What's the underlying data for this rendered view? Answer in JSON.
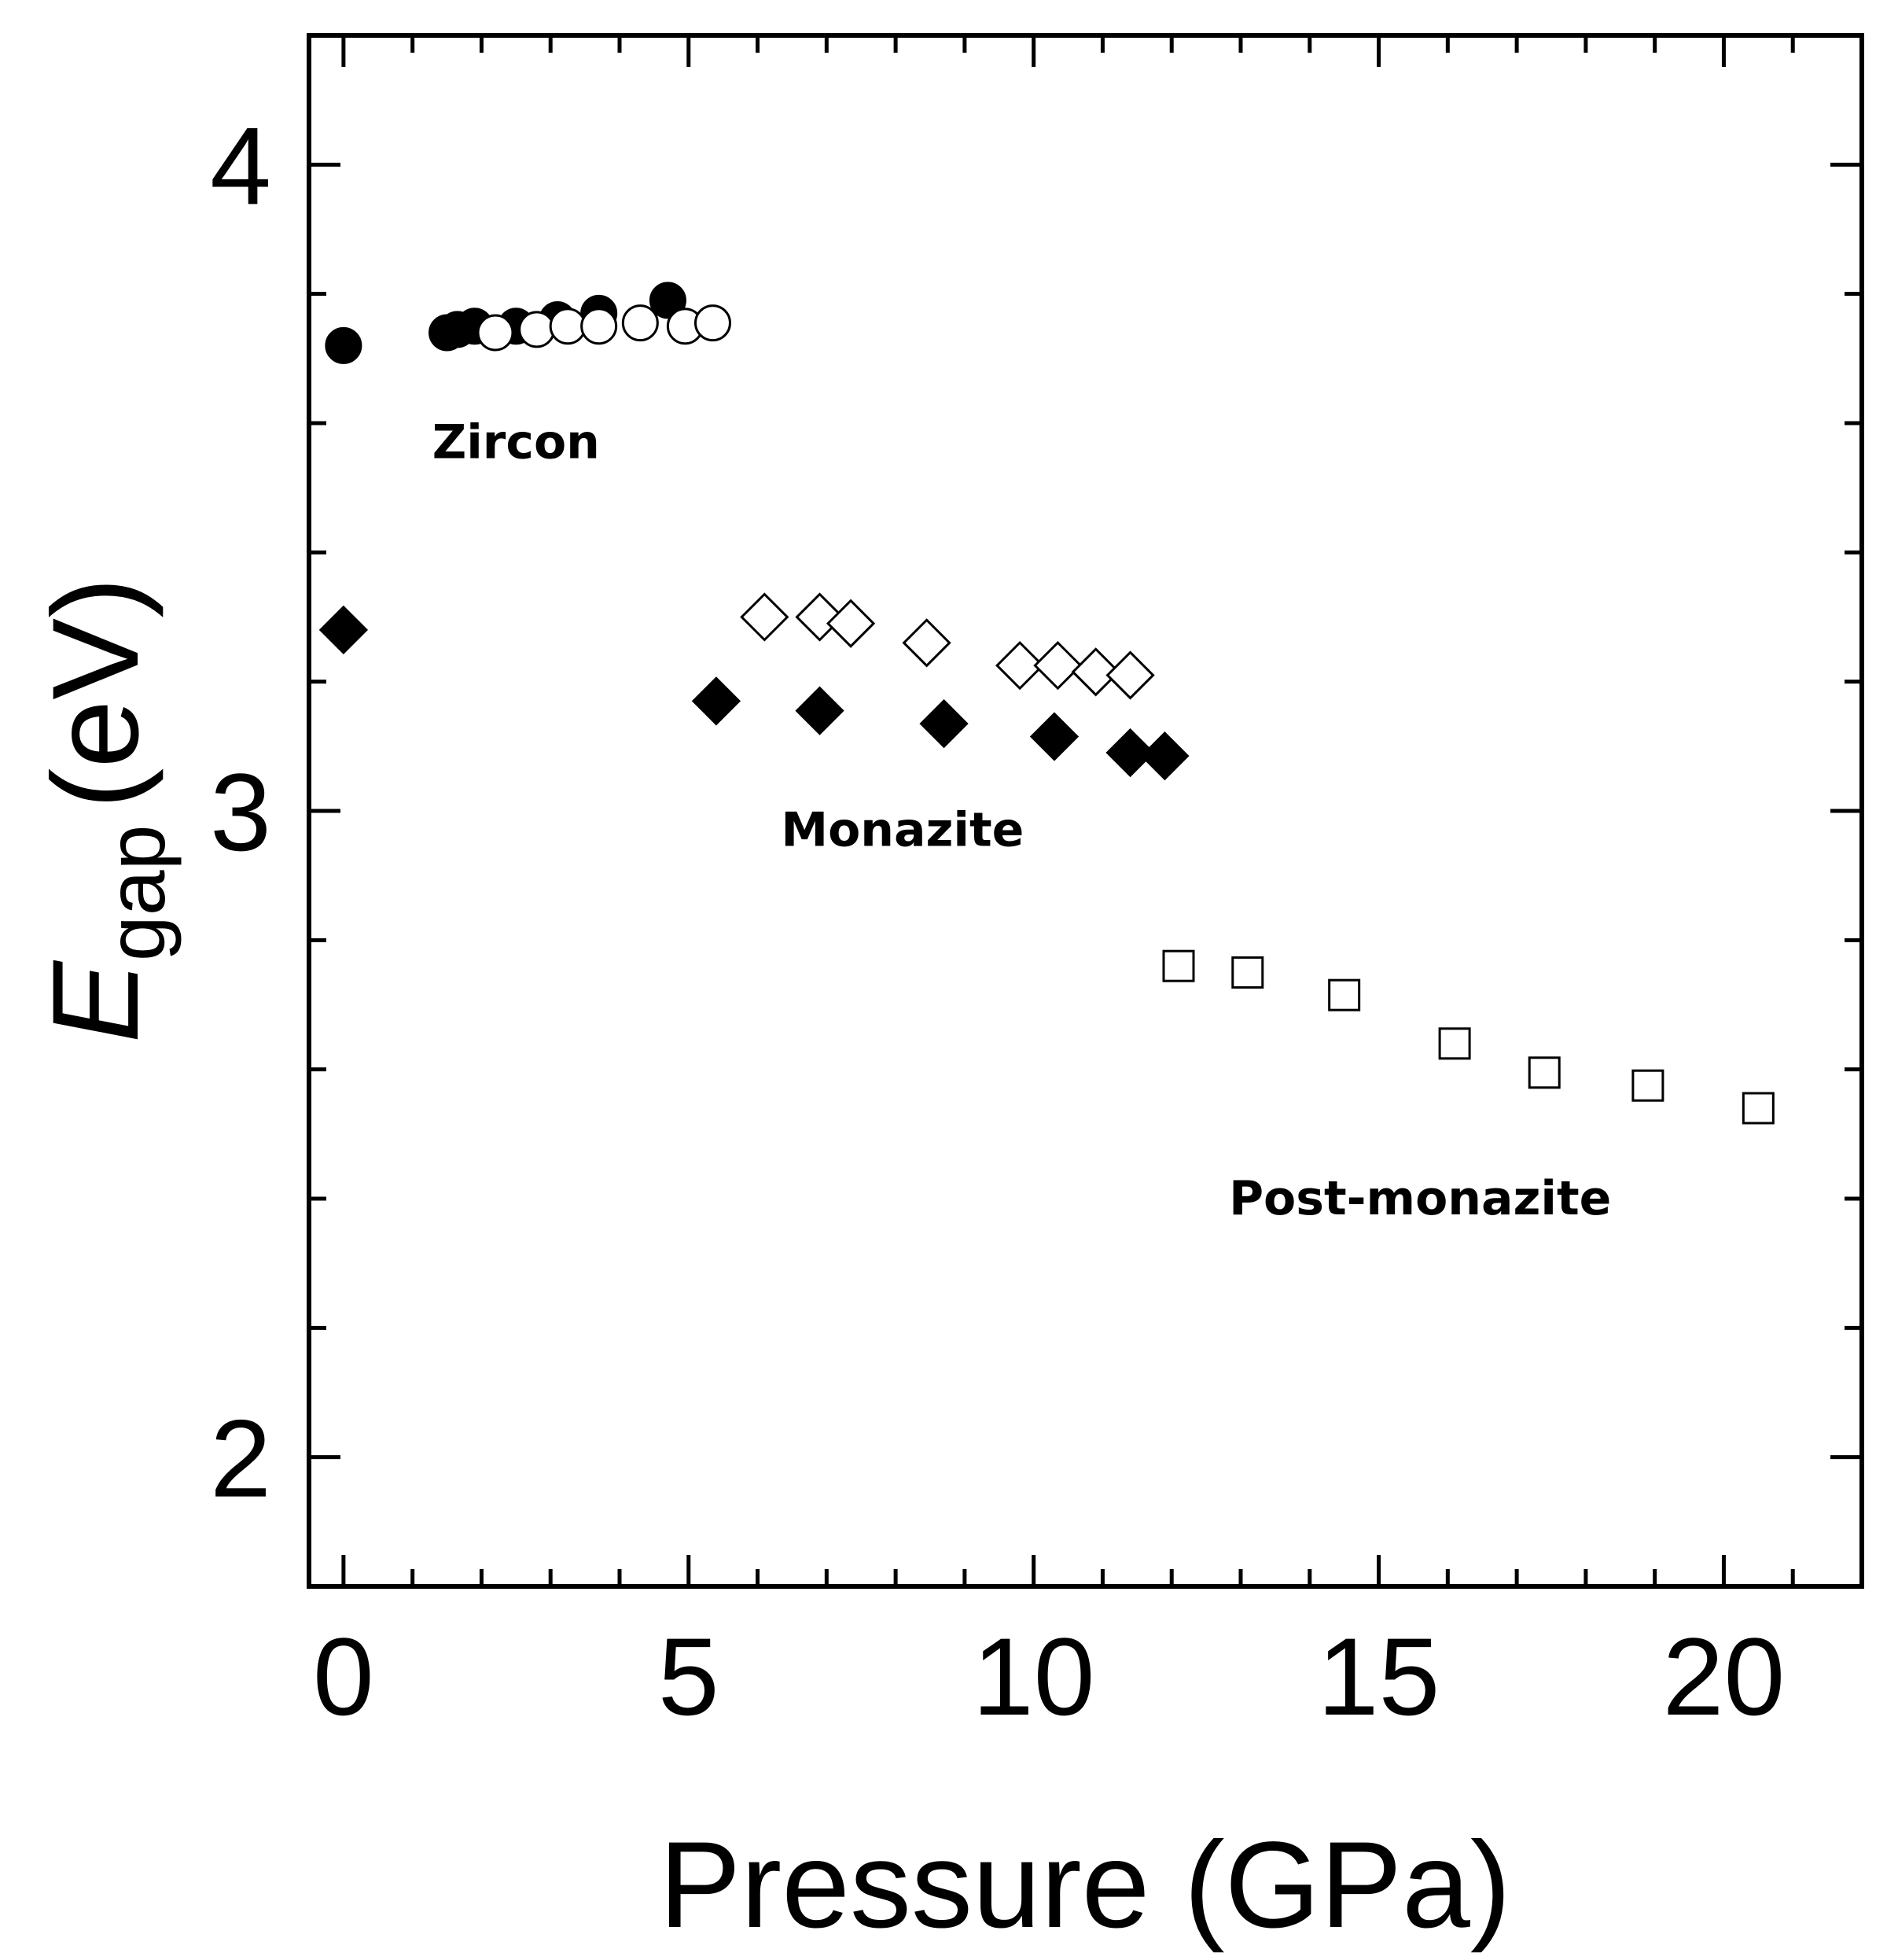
{
  "chart_data": {
    "type": "scatter",
    "title": "",
    "xlabel": "Pressure (GPa)",
    "ylabel_main": "E",
    "ylabel_sub": "gap",
    "ylabel_unit": "(eV)",
    "xlim": [
      -0.5,
      22
    ],
    "ylim": [
      1.8,
      4.2
    ],
    "xticks": [
      0,
      5,
      10,
      15,
      20
    ],
    "yticks": [
      2,
      3,
      4
    ],
    "xtick_labels": [
      "0",
      "5",
      "10",
      "15",
      "20"
    ],
    "ytick_labels": [
      "2",
      "3",
      "4"
    ],
    "grid": false,
    "series": [
      {
        "name": "Zircon (filled circles)",
        "marker": "circle",
        "filled": true,
        "x": [
          0.0,
          1.5,
          1.65,
          1.9,
          2.5,
          3.1,
          3.7,
          4.7
        ],
        "y": [
          3.72,
          3.74,
          3.745,
          3.75,
          3.75,
          3.76,
          3.77,
          3.79
        ]
      },
      {
        "name": "Zircon (open circles)",
        "marker": "circle",
        "filled": false,
        "x": [
          2.2,
          2.8,
          3.25,
          3.7,
          4.3,
          4.95,
          5.35
        ],
        "y": [
          3.74,
          3.745,
          3.75,
          3.75,
          3.755,
          3.75,
          3.755
        ]
      },
      {
        "name": "Monazite (filled diamonds)",
        "marker": "diamond",
        "filled": true,
        "x": [
          0.0,
          5.4,
          6.9,
          8.7,
          10.3,
          11.4,
          11.9
        ],
        "y": [
          3.28,
          3.17,
          3.155,
          3.135,
          3.115,
          3.09,
          3.085
        ]
      },
      {
        "name": "Monazite (open diamonds)",
        "marker": "diamond",
        "filled": false,
        "x": [
          6.1,
          6.9,
          7.35,
          8.45,
          9.8,
          10.35,
          10.9,
          11.4
        ],
        "y": [
          3.3,
          3.3,
          3.29,
          3.26,
          3.225,
          3.225,
          3.215,
          3.21
        ]
      },
      {
        "name": "Post-monazite (open squares)",
        "marker": "square",
        "filled": false,
        "x": [
          12.1,
          13.1,
          14.5,
          16.1,
          17.4,
          18.9,
          20.5
        ],
        "y": [
          2.76,
          2.75,
          2.715,
          2.64,
          2.595,
          2.575,
          2.54
        ]
      }
    ],
    "annotations": [
      {
        "text": "Zircon",
        "x": 2.5,
        "y": 3.57
      },
      {
        "text": "Monazite",
        "x": 8.1,
        "y": 2.97
      },
      {
        "text": "Post-monazite",
        "x": 15.6,
        "y": 2.4
      }
    ]
  }
}
